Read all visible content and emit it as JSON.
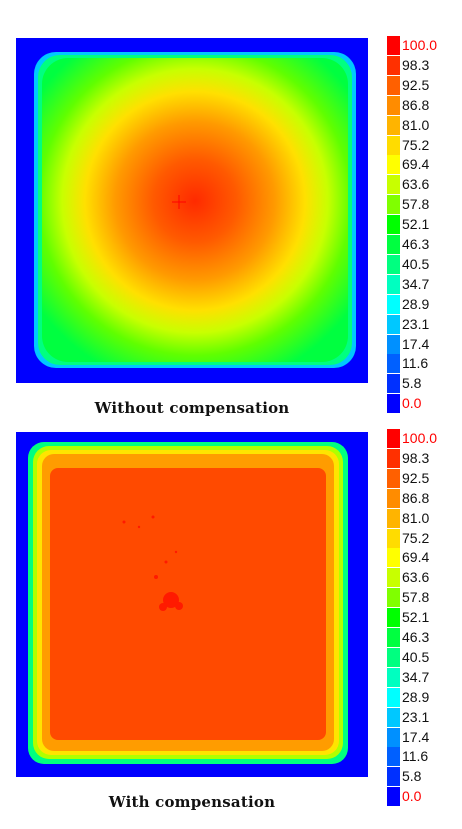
{
  "panels": [
    {
      "id": "top",
      "caption": "Without compensation",
      "center_value": 97,
      "edge_value": 55,
      "profile": "radial gradient peaking at center, falling to green near edges, blue border"
    },
    {
      "id": "bottom",
      "caption": "With compensation",
      "center_value": 96,
      "edge_value": 60,
      "profile": "nearly uniform red-orange plateau with thin orange/yellow/green rim and blue border"
    }
  ],
  "colorbar": {
    "labels": [
      "100.0",
      "98.3",
      "92.5",
      "86.8",
      "81.0",
      "75.2",
      "69.4",
      "63.6",
      "57.8",
      "52.1",
      "46.3",
      "40.5",
      "34.7",
      "28.9",
      "23.1",
      "17.4",
      "11.6",
      "5.8",
      "0.0"
    ],
    "colors": [
      "#ff0000",
      "#ff3000",
      "#ff6000",
      "#ff8c00",
      "#ffb400",
      "#ffdc00",
      "#ffff00",
      "#c8ff00",
      "#80ff00",
      "#00ff00",
      "#00ff40",
      "#00ff80",
      "#00ffc0",
      "#00ffff",
      "#00c8ff",
      "#0090ff",
      "#0060ff",
      "#0030ff",
      "#0000ff"
    ]
  },
  "chart_data": [
    {
      "type": "heatmap",
      "title": "Without compensation",
      "colorbar_min": 0.0,
      "colorbar_max": 100.0,
      "colorbar_ticks": [
        100.0,
        98.3,
        92.5,
        86.8,
        81.0,
        75.2,
        69.4,
        63.6,
        57.8,
        52.1,
        46.3,
        40.5,
        34.7,
        28.9,
        23.1,
        17.4,
        11.6,
        5.8,
        0.0
      ],
      "approx_center_value": 97,
      "approx_edge_value": 55
    },
    {
      "type": "heatmap",
      "title": "With compensation",
      "colorbar_min": 0.0,
      "colorbar_max": 100.0,
      "colorbar_ticks": [
        100.0,
        98.3,
        92.5,
        86.8,
        81.0,
        75.2,
        69.4,
        63.6,
        57.8,
        52.1,
        46.3,
        40.5,
        34.7,
        28.9,
        23.1,
        17.4,
        11.6,
        5.8,
        0.0
      ],
      "approx_center_value": 96,
      "approx_edge_value": 60
    }
  ]
}
